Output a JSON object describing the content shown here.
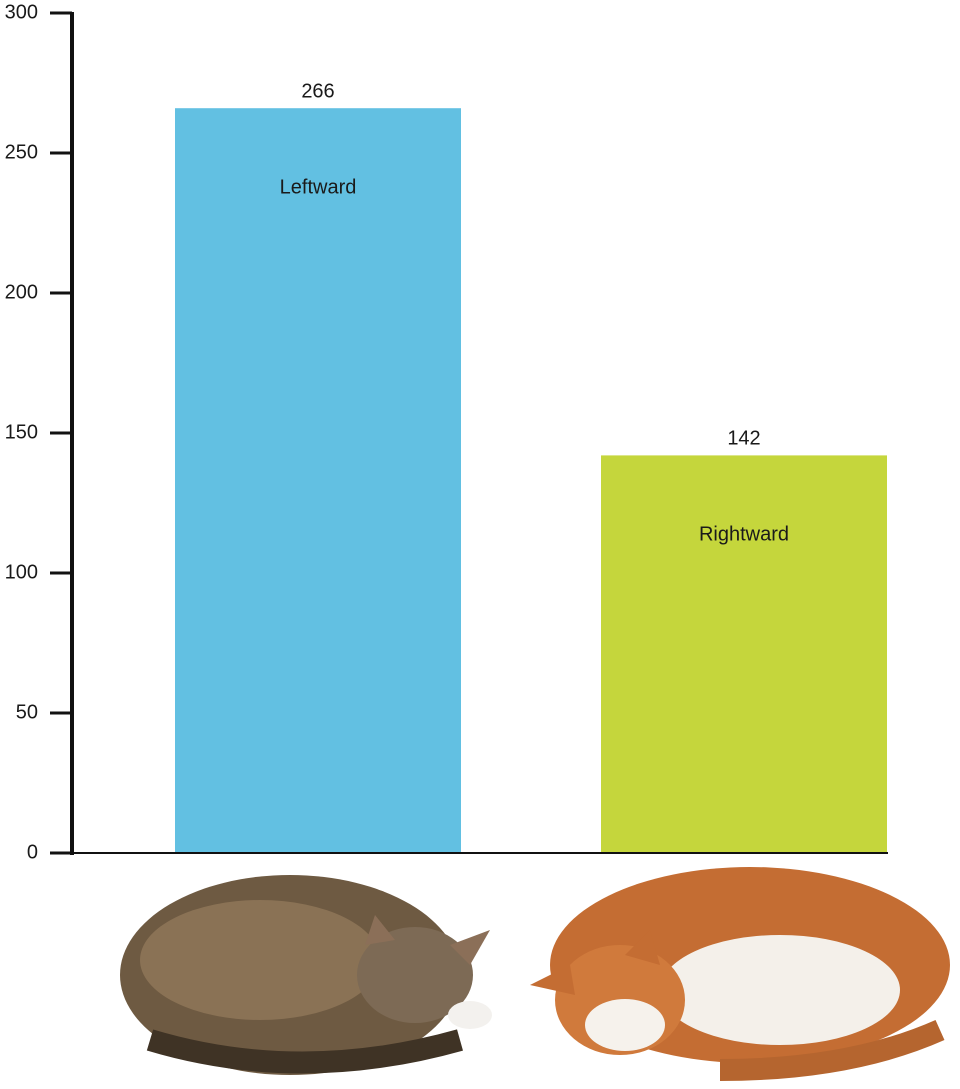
{
  "chart_data": {
    "type": "bar",
    "categories": [
      "Leftward",
      "Rightward"
    ],
    "values": [
      266,
      142
    ],
    "colors": [
      "#62c0e2",
      "#c5d63c"
    ],
    "ylim": [
      0,
      300
    ],
    "yticks": [
      0,
      50,
      100,
      150,
      200,
      250,
      300
    ]
  }
}
